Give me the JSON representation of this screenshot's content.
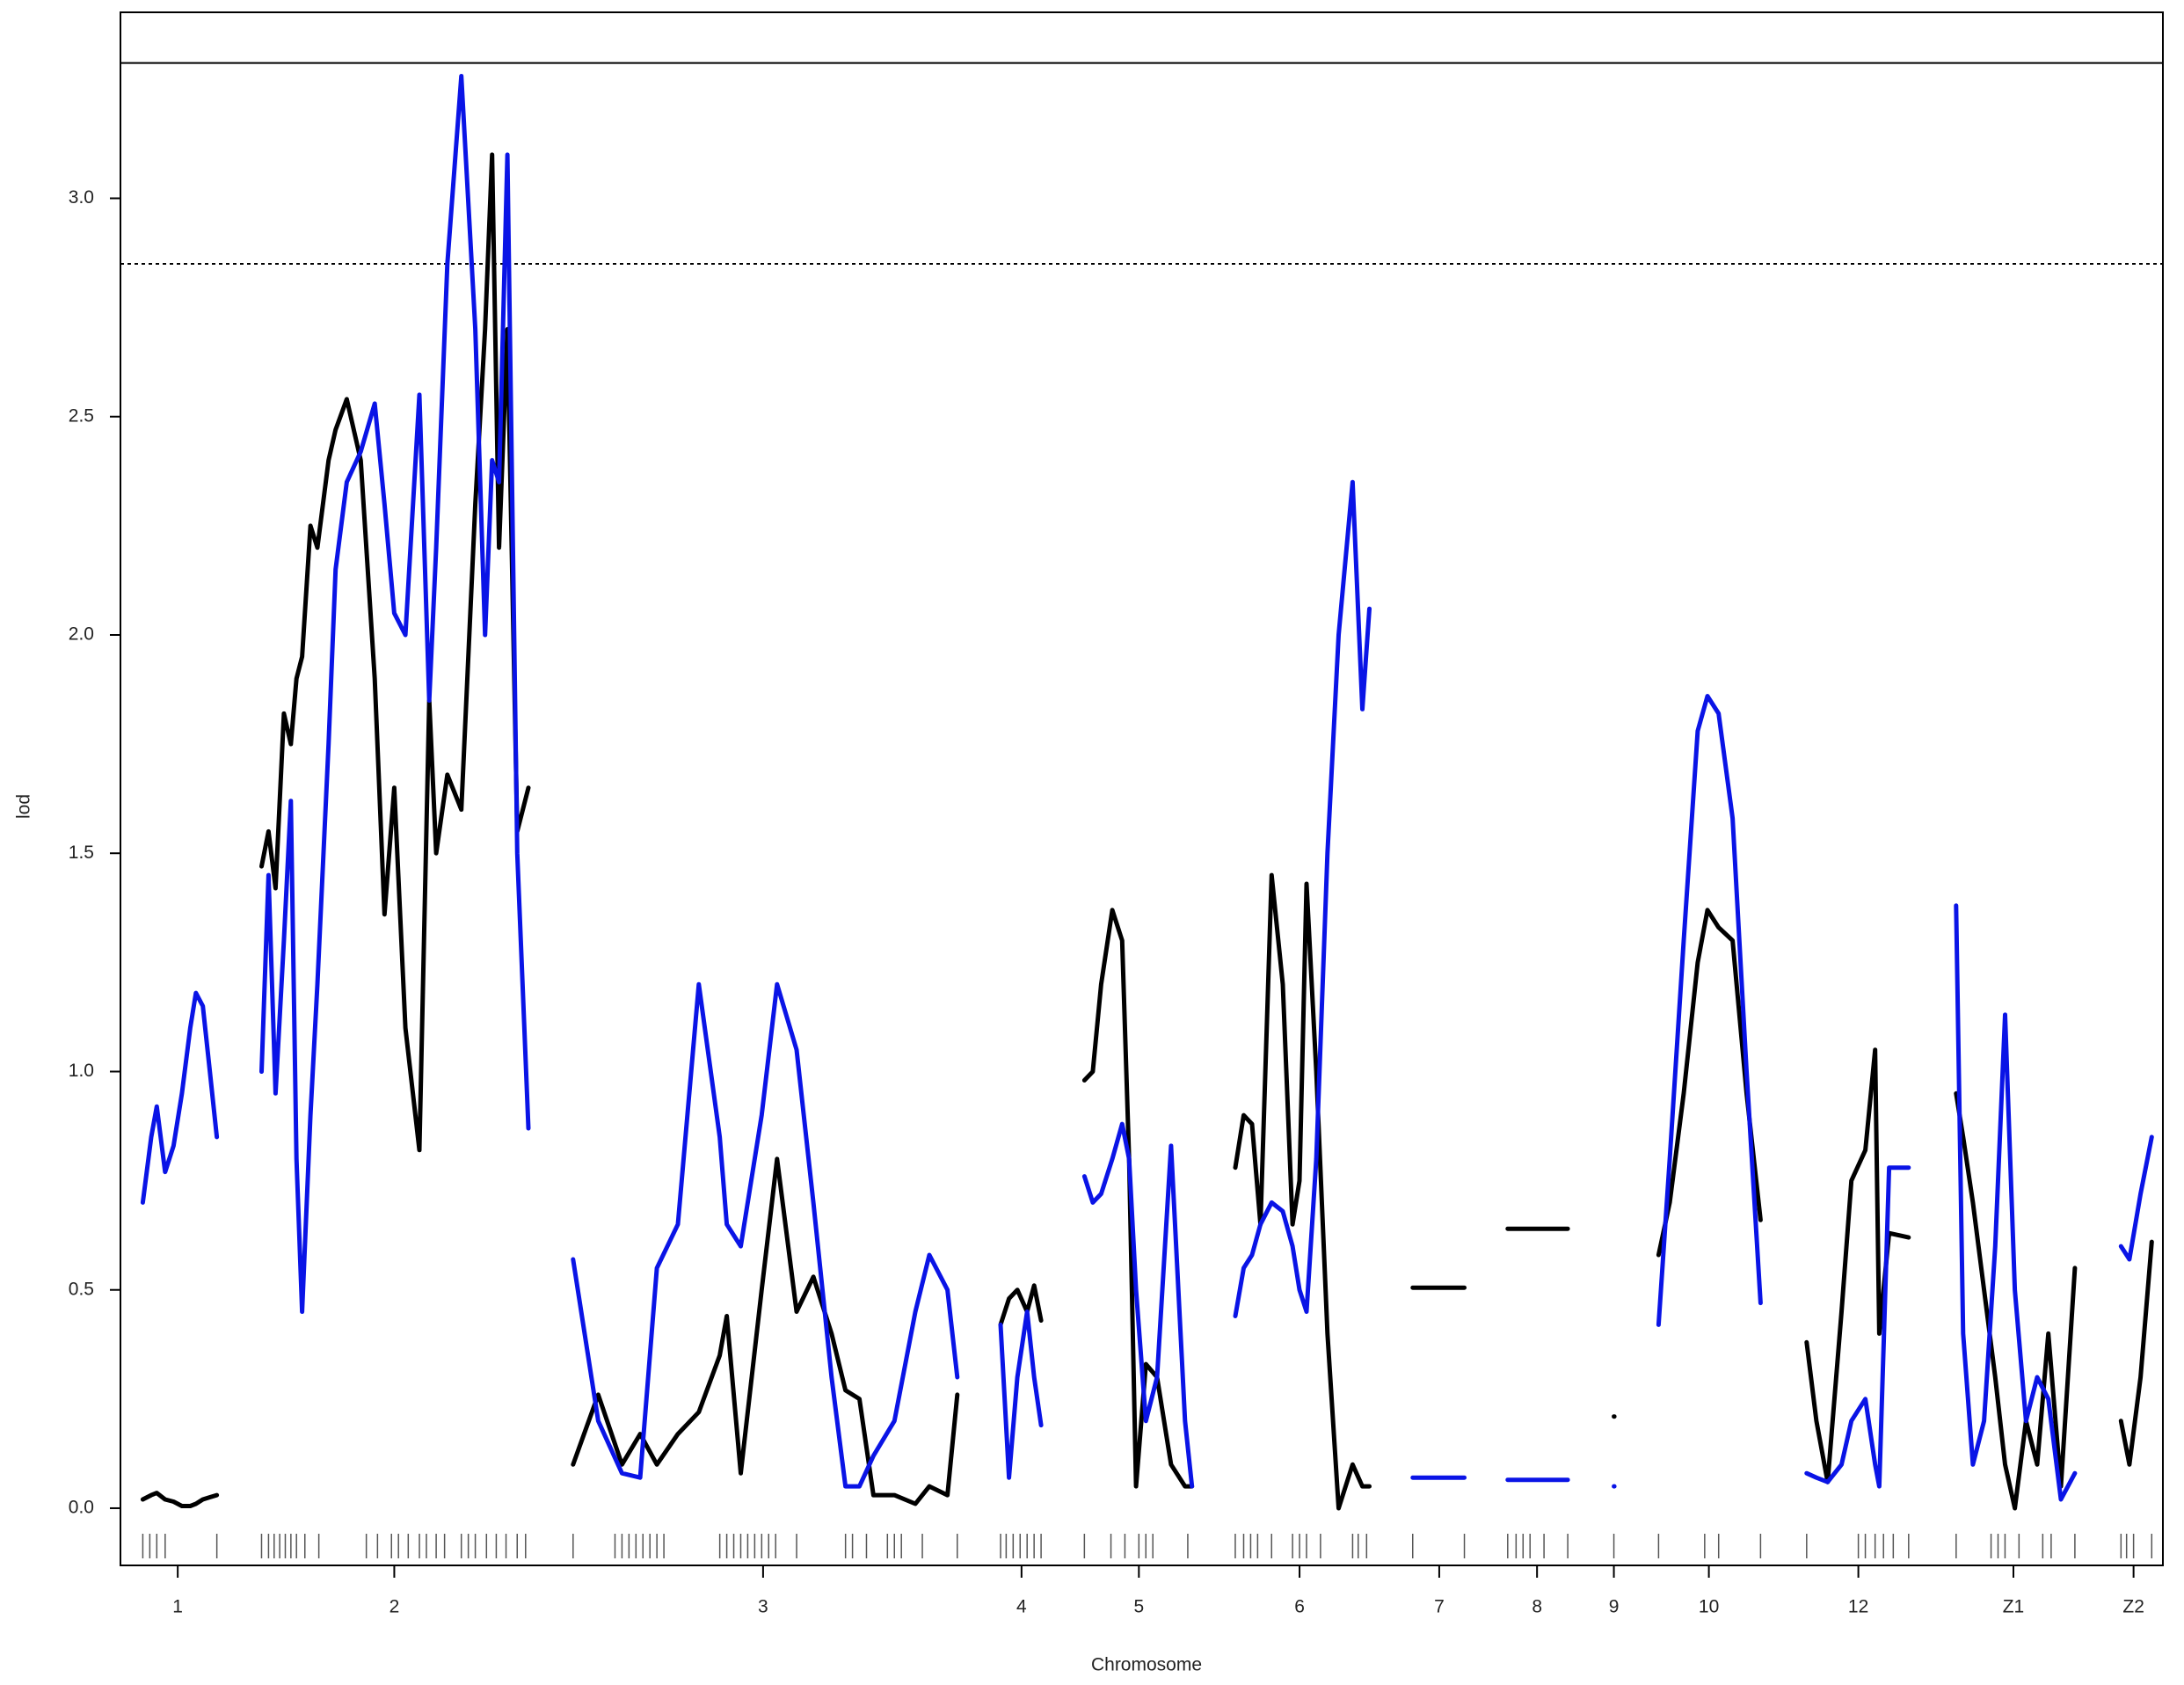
{
  "chart_data": {
    "type": "line",
    "xlabel": "Chromosome",
    "ylabel": "lod",
    "xlim": [
      86,
      1548
    ],
    "ylim": [
      -0.131,
      3.426
    ],
    "yticks": [
      {
        "value": 0,
        "label": "0.0"
      },
      0.5,
      {
        "value": 1,
        "label": "1.0"
      },
      1.5,
      {
        "value": 2,
        "label": "2.0"
      },
      2.5,
      {
        "value": 3,
        "label": "3.0"
      }
    ],
    "xticks": [
      {
        "value": 127,
        "label": "1"
      },
      {
        "value": 282,
        "label": "2"
      },
      {
        "value": 546,
        "label": "3"
      },
      {
        "value": 731,
        "label": "4"
      },
      {
        "value": 815,
        "label": "5"
      },
      {
        "value": 930,
        "label": "6"
      },
      {
        "value": 1030,
        "label": "7"
      },
      {
        "value": 1100,
        "label": "8"
      },
      {
        "value": 1155,
        "label": "9"
      },
      {
        "value": 1223,
        "label": "10"
      },
      {
        "value": 1330,
        "label": "12"
      },
      {
        "value": 1441,
        "label": "Z1"
      },
      {
        "value": 1527,
        "label": "Z2"
      }
    ],
    "hlines": [
      {
        "value": 3.31,
        "style": "solid"
      },
      {
        "value": 2.85,
        "style": "dotted"
      }
    ],
    "markers": [
      102,
      107,
      112,
      118,
      155,
      187,
      192,
      196,
      200,
      204,
      208,
      212,
      218,
      228,
      262,
      270,
      280,
      285,
      292,
      300,
      305,
      312,
      318,
      330,
      335,
      340,
      348,
      355,
      362,
      370,
      376,
      410,
      440,
      445,
      450,
      455,
      460,
      465,
      470,
      475,
      515,
      520,
      525,
      530,
      535,
      540,
      545,
      550,
      555,
      570,
      605,
      610,
      620,
      635,
      640,
      645,
      660,
      685,
      716,
      720,
      725,
      730,
      735,
      740,
      745,
      776,
      795,
      805,
      815,
      820,
      825,
      850,
      884,
      890,
      895,
      900,
      910,
      925,
      930,
      935,
      945,
      968,
      972,
      978,
      1011,
      1048,
      1079,
      1085,
      1090,
      1095,
      1105,
      1122,
      1155,
      1187,
      1220,
      1230,
      1260,
      1293,
      1330,
      1335,
      1342,
      1348,
      1355,
      1366,
      1400,
      1425,
      1430,
      1435,
      1445,
      1462,
      1468,
      1485,
      1518,
      1522,
      1527,
      1540
    ],
    "x": [
      102,
      108,
      112,
      118,
      124,
      130,
      136,
      140,
      145,
      150,
      155,
      null,
      187,
      192,
      197,
      203,
      208,
      212,
      216,
      222,
      227,
      235,
      240,
      248,
      258,
      268,
      275,
      282,
      290,
      300,
      307,
      312,
      320,
      330,
      340,
      347,
      352,
      357,
      363,
      370,
      378,
      null,
      410,
      428,
      445,
      458,
      470,
      485,
      500,
      515,
      520,
      530,
      545,
      556,
      570,
      582,
      595,
      605,
      615,
      625,
      640,
      655,
      665,
      678,
      685,
      null,
      716,
      722,
      728,
      735,
      740,
      745,
      null,
      776,
      782,
      788,
      796,
      803,
      808,
      813,
      820,
      828,
      838,
      848,
      853,
      null,
      884,
      890,
      896,
      902,
      910,
      918,
      925,
      930,
      935,
      942,
      950,
      958,
      968,
      975,
      980,
      null,
      1011,
      1048,
      null,
      1079,
      1122,
      null,
      1155,
      null,
      1187,
      1195,
      1205,
      1215,
      1222,
      1230,
      1240,
      1250,
      1260,
      null,
      1293,
      1300,
      1308,
      1318,
      1325,
      1335,
      1342,
      1345,
      1352,
      1366,
      null,
      1400,
      1405,
      1412,
      1420,
      1428,
      1435,
      1442,
      1450,
      1458,
      1466,
      1475,
      1485,
      null,
      1518,
      1524,
      1532,
      1540
    ],
    "series": [
      {
        "color": "#000000",
        "values": [
          0.02,
          0.03,
          0.035,
          0.02,
          0.015,
          0.005,
          0.005,
          0.01,
          0.02,
          0.025,
          0.03,
          null,
          1.47,
          1.55,
          1.42,
          1.82,
          1.75,
          1.9,
          1.95,
          2.25,
          2.2,
          2.4,
          2.47,
          2.54,
          2.4,
          1.9,
          1.36,
          1.65,
          1.1,
          0.82,
          1.85,
          1.5,
          1.68,
          1.6,
          2.3,
          2.7,
          3.1,
          2.2,
          2.7,
          1.55,
          1.65,
          null,
          0.1,
          0.26,
          0.1,
          0.17,
          0.1,
          0.17,
          0.22,
          0.35,
          0.44,
          0.08,
          0.5,
          0.8,
          0.45,
          0.53,
          0.4,
          0.27,
          0.25,
          0.03,
          0.03,
          0.01,
          0.05,
          0.03,
          0.26,
          null,
          0.42,
          0.48,
          0.5,
          0.45,
          0.51,
          0.43,
          null,
          0.98,
          1.0,
          1.2,
          1.37,
          1.3,
          0.8,
          0.05,
          0.33,
          0.3,
          0.1,
          0.05,
          0.05,
          null,
          0.78,
          0.9,
          0.88,
          0.65,
          1.45,
          1.2,
          0.65,
          0.75,
          1.43,
          1.0,
          0.4,
          0.0,
          0.1,
          0.05,
          0.05,
          null,
          0.505,
          0.505,
          null,
          0.64,
          0.64,
          null,
          0.21,
          null,
          0.58,
          0.7,
          0.95,
          1.25,
          1.37,
          1.33,
          1.3,
          0.95,
          0.66,
          null,
          0.38,
          0.2,
          0.06,
          0.45,
          0.75,
          0.82,
          1.05,
          0.4,
          0.63,
          0.62,
          null,
          0.95,
          0.85,
          0.7,
          0.5,
          0.3,
          0.1,
          0.0,
          0.2,
          0.1,
          0.4,
          0.05,
          0.55,
          null,
          0.2,
          0.1,
          0.3,
          0.61
        ]
      },
      {
        "color": "#0a14e6",
        "values": [
          0.7,
          0.85,
          0.92,
          0.77,
          0.83,
          0.95,
          1.1,
          1.18,
          1.15,
          1.0,
          0.85,
          null,
          1.0,
          1.45,
          0.95,
          1.3,
          1.62,
          0.8,
          0.45,
          0.9,
          1.2,
          1.75,
          2.15,
          2.35,
          2.42,
          2.53,
          2.3,
          2.05,
          2.0,
          2.55,
          1.85,
          2.2,
          2.85,
          3.28,
          2.7,
          2.0,
          2.4,
          2.35,
          3.1,
          1.5,
          0.87,
          null,
          0.57,
          0.2,
          0.08,
          0.07,
          0.55,
          0.65,
          1.2,
          0.85,
          0.65,
          0.6,
          0.9,
          1.2,
          1.05,
          0.7,
          0.3,
          0.05,
          0.05,
          0.12,
          0.2,
          0.45,
          0.58,
          0.5,
          0.3,
          null,
          0.42,
          0.07,
          0.3,
          0.45,
          0.3,
          0.19,
          null,
          0.76,
          0.7,
          0.72,
          0.8,
          0.88,
          0.8,
          0.5,
          0.2,
          0.3,
          0.83,
          0.2,
          0.05,
          null,
          0.44,
          0.55,
          0.58,
          0.65,
          0.7,
          0.68,
          0.6,
          0.5,
          0.45,
          0.8,
          1.5,
          2.0,
          2.35,
          1.83,
          2.06,
          null,
          0.07,
          0.07,
          null,
          0.065,
          0.065,
          null,
          0.05,
          null,
          0.42,
          0.8,
          1.3,
          1.78,
          1.86,
          1.82,
          1.58,
          1.0,
          0.47,
          null,
          0.08,
          0.07,
          0.06,
          0.1,
          0.2,
          0.25,
          0.1,
          0.05,
          0.78,
          0.78,
          null,
          1.38,
          0.4,
          0.1,
          0.2,
          0.6,
          1.13,
          0.5,
          0.2,
          0.3,
          0.25,
          0.02,
          0.08,
          null,
          0.6,
          0.57,
          0.72,
          0.85
        ]
      }
    ]
  }
}
